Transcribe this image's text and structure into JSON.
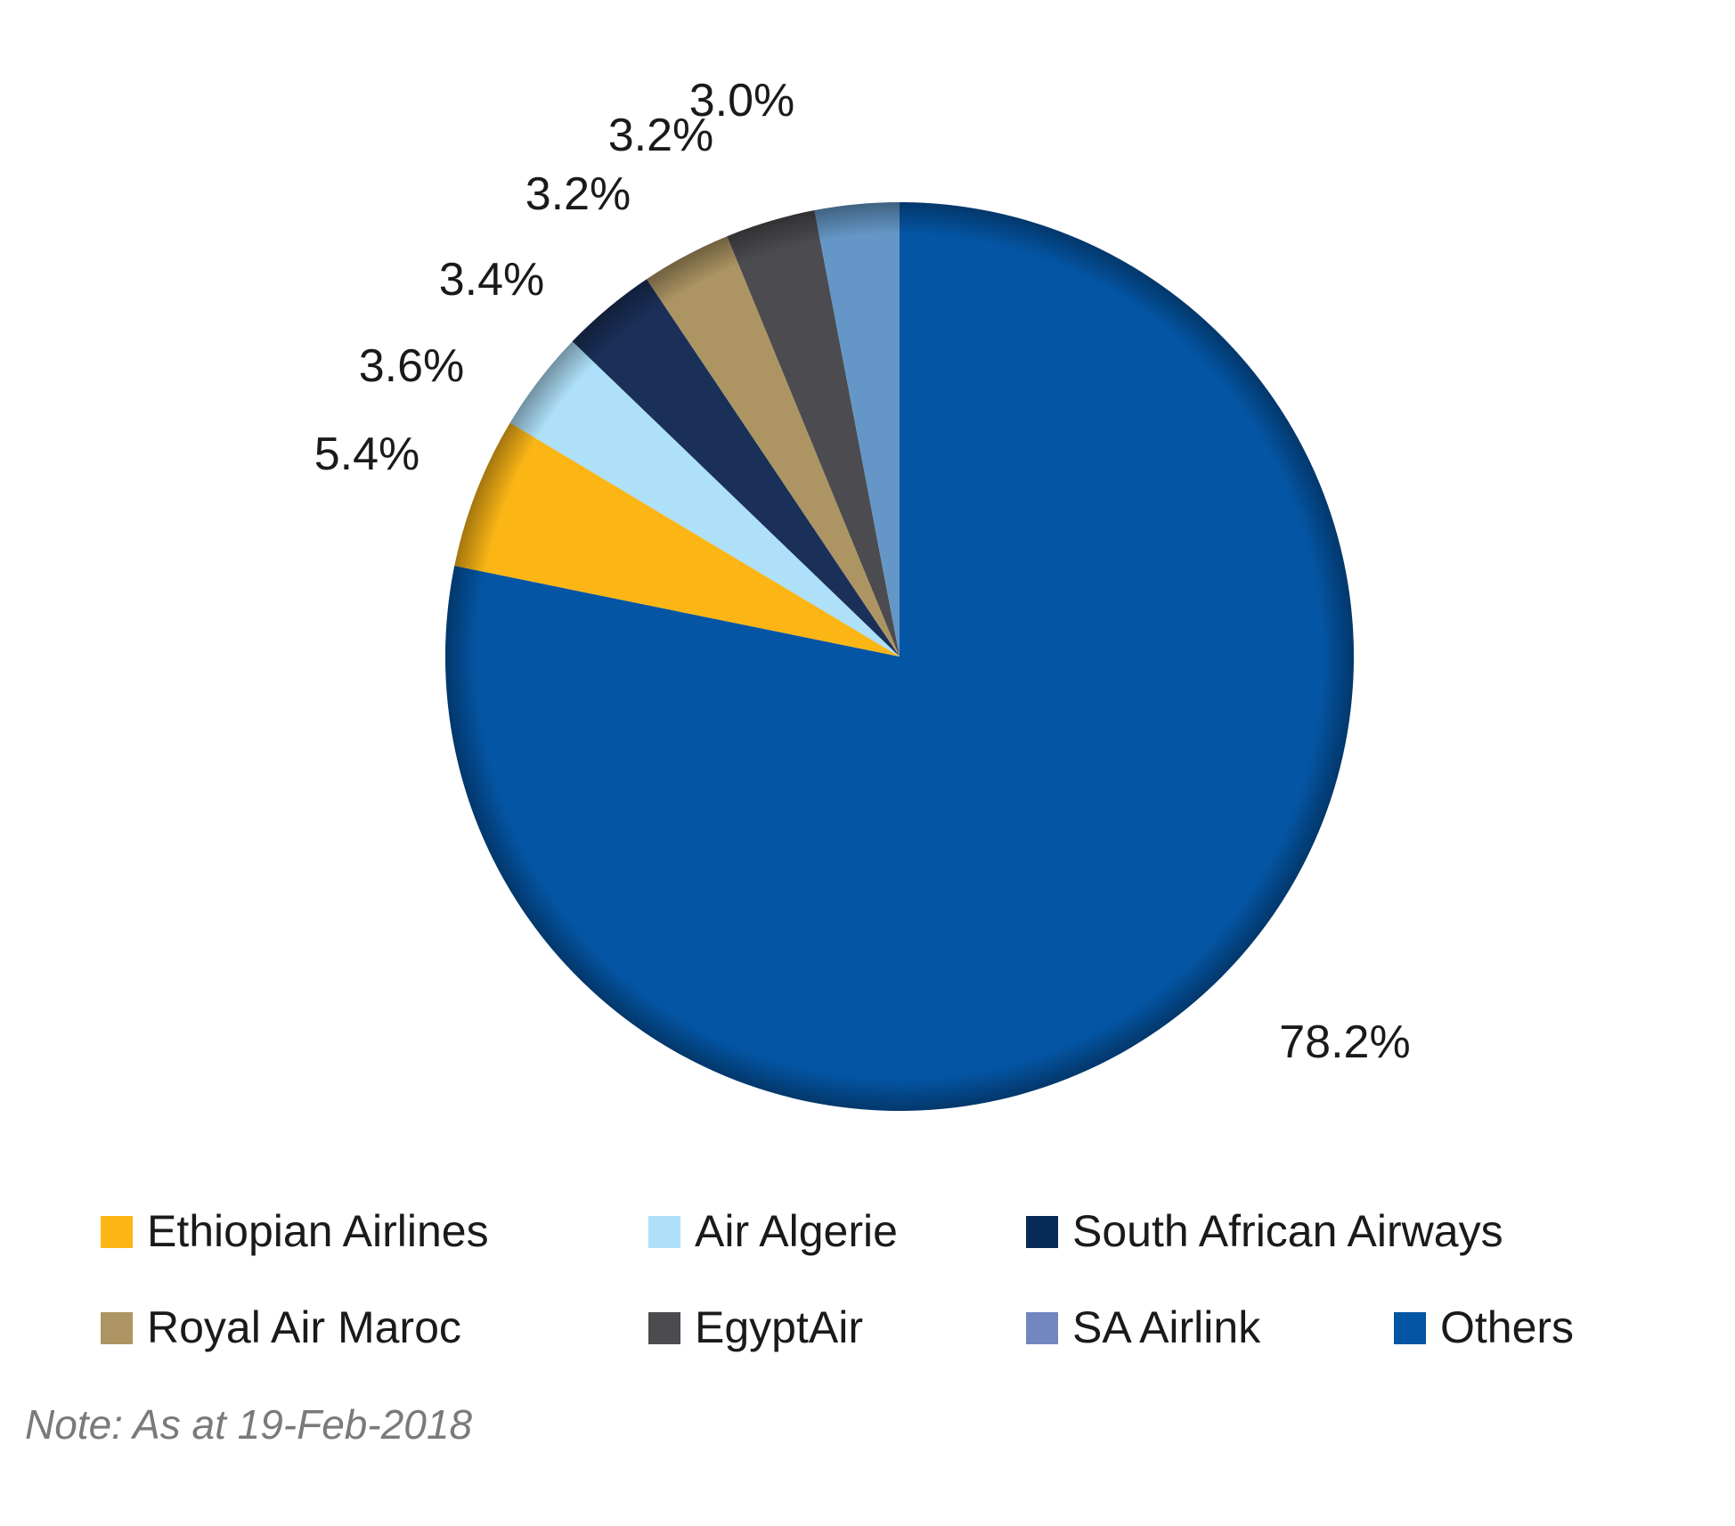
{
  "chart_data": {
    "type": "pie",
    "start": "12 o'clock",
    "direction": "clockwise",
    "slices": [
      {
        "name": "Others",
        "value": 78.2,
        "label": "78.2%",
        "color": "#0455A4"
      },
      {
        "name": "Ethiopian Airlines",
        "value": 5.4,
        "label": "5.4%",
        "color": "#FBB616"
      },
      {
        "name": "Air Algerie",
        "value": 3.6,
        "label": "3.6%",
        "color": "#AEE0F9"
      },
      {
        "name": "South African Airways",
        "value": 3.4,
        "label": "3.4%",
        "color": "#1A3059"
      },
      {
        "name": "Royal Air Maroc",
        "value": 3.2,
        "label": "3.2%",
        "color": "#AD9563"
      },
      {
        "name": "EgyptAir",
        "value": 3.2,
        "label": "3.2%",
        "color": "#4C4C50"
      },
      {
        "name": "SA Airlink",
        "value": 3.0,
        "label": "3.0%",
        "color": "#6497C7"
      }
    ],
    "legend": {
      "placement": "bottom",
      "entries": [
        {
          "name": "Ethiopian Airlines",
          "color": "#FBB616"
        },
        {
          "name": "Air Algerie",
          "color": "#AEE0F9"
        },
        {
          "name": "South African Airways",
          "color": "#062B57"
        },
        {
          "name": "Royal Air Maroc",
          "color": "#AD9563"
        },
        {
          "name": "EgyptAir",
          "color": "#4C4C50"
        },
        {
          "name": "SA Airlink",
          "color": "#7286C0"
        },
        {
          "name": "Others",
          "color": "#0455A4"
        }
      ]
    },
    "note": "Note: As at 19-Feb-2018"
  }
}
